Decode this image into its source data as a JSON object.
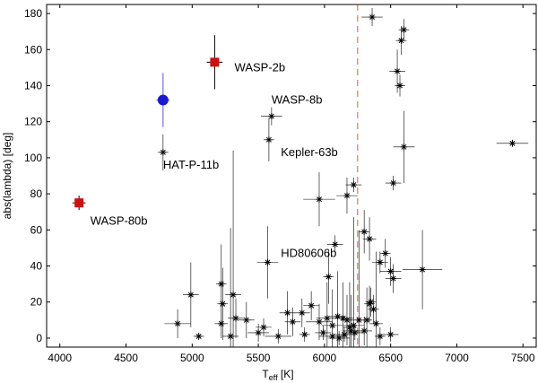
{
  "chart_data": {
    "type": "scatter",
    "title": "",
    "xlabel": "T",
    "xlabel_sub": "eff",
    "xlabel_unit": " [K]",
    "ylabel": "abs(lambda) [deg]",
    "xlim": [
      3900,
      7600
    ],
    "ylim": [
      -5,
      185
    ],
    "xticks": [
      4000,
      4500,
      5000,
      5500,
      6000,
      6500,
      7000,
      7500
    ],
    "yticks": [
      0,
      20,
      40,
      60,
      80,
      100,
      120,
      140,
      160,
      180
    ],
    "grid": false,
    "threshold": {
      "x": 6250,
      "color": "#e8806a",
      "style": "dashed"
    },
    "colors": {
      "star": "#000000",
      "errorbar": "#000000",
      "square": "#cc1111",
      "circle": "#1a1acc",
      "circle_err": "#5555dd"
    },
    "highlighted": [
      {
        "name": "WASP-2b",
        "marker": "square",
        "x": 5170,
        "y": 153,
        "xerr": 60,
        "yerr": 15
      },
      {
        "name": "WASP-80b",
        "marker": "square",
        "x": 4145,
        "y": 75,
        "xerr": 50,
        "yerr": 4
      },
      {
        "name": "HAT-P-11b",
        "marker": "circle",
        "x": 4780,
        "y": 132,
        "xerr": 50,
        "yerr": 15
      }
    ],
    "annotations": [
      {
        "text": "WASP-2b",
        "x": 5320,
        "y": 148
      },
      {
        "text": "WASP-8b",
        "x": 5600,
        "y": 130
      },
      {
        "text": "HAT-P-11b",
        "x": 4780,
        "y": 94
      },
      {
        "text": "Kepler-63b",
        "x": 5670,
        "y": 101
      },
      {
        "text": "WASP-80b",
        "x": 4230,
        "y": 63
      },
      {
        "text": "HD80606b",
        "x": 5670,
        "y": 45
      }
    ],
    "points": [
      [
        6360,
        178,
        80,
        5
      ],
      [
        6600,
        171,
        40,
        6
      ],
      [
        6580,
        165,
        40,
        8
      ],
      [
        6550,
        148,
        60,
        12
      ],
      [
        6570,
        140,
        40,
        6
      ],
      [
        5600,
        123,
        80,
        5
      ],
      [
        5580,
        110,
        40,
        12
      ],
      [
        4780,
        103,
        40,
        10
      ],
      [
        6600,
        106,
        80,
        20
      ],
      [
        7420,
        108,
        120,
        2
      ],
      [
        6220,
        85,
        60,
        4
      ],
      [
        6170,
        79,
        80,
        10
      ],
      [
        5960,
        77,
        120,
        15
      ],
      [
        6520,
        86,
        60,
        4
      ],
      [
        6460,
        47,
        40,
        8
      ],
      [
        6300,
        59,
        40,
        12
      ],
      [
        6340,
        55,
        50,
        12
      ],
      [
        6420,
        42,
        60,
        6
      ],
      [
        6500,
        37,
        80,
        8
      ],
      [
        6520,
        33,
        60,
        8
      ],
      [
        6740,
        38,
        150,
        22
      ],
      [
        6080,
        52,
        60,
        5
      ],
      [
        6030,
        34,
        40,
        15
      ],
      [
        5570,
        42,
        80,
        20
      ],
      [
        4990,
        24,
        60,
        18
      ],
      [
        4890,
        8,
        100,
        8
      ],
      [
        5220,
        30,
        40,
        22
      ],
      [
        5230,
        19,
        40,
        20
      ],
      [
        5220,
        8,
        50,
        8
      ],
      [
        5310,
        24,
        60,
        80
      ],
      [
        5330,
        11,
        60,
        11
      ],
      [
        5410,
        10,
        60,
        10
      ],
      [
        5290,
        1,
        60,
        60
      ],
      [
        5050,
        1,
        40,
        2
      ],
      [
        5720,
        14,
        60,
        12
      ],
      [
        5760,
        9,
        60,
        8
      ],
      [
        5830,
        14,
        60,
        8
      ],
      [
        5900,
        18,
        60,
        8
      ],
      [
        5960,
        9,
        100,
        10
      ],
      [
        6020,
        11,
        80,
        20
      ],
      [
        6060,
        7,
        80,
        20
      ],
      [
        6100,
        12,
        60,
        25
      ],
      [
        6140,
        11,
        80,
        20
      ],
      [
        6170,
        10,
        50,
        14
      ],
      [
        6190,
        6,
        50,
        25
      ],
      [
        6200,
        4,
        60,
        20
      ],
      [
        6220,
        7,
        80,
        60
      ],
      [
        6260,
        10,
        80,
        50
      ],
      [
        6300,
        4,
        60,
        8
      ],
      [
        6320,
        10,
        40,
        18
      ],
      [
        6350,
        20,
        40,
        8
      ],
      [
        6370,
        16,
        40,
        8
      ],
      [
        6390,
        8,
        50,
        40
      ],
      [
        6420,
        1,
        40,
        5
      ],
      [
        6500,
        2,
        60,
        4
      ],
      [
        6110,
        0,
        80,
        4
      ],
      [
        5990,
        3,
        60,
        4
      ],
      [
        5850,
        2,
        40,
        4
      ],
      [
        5500,
        3,
        80,
        5
      ],
      [
        5650,
        1,
        100,
        4
      ],
      [
        5540,
        6,
        60,
        5
      ],
      [
        6060,
        1,
        100,
        6
      ],
      [
        6150,
        2,
        80,
        4
      ],
      [
        6230,
        3,
        60,
        4
      ],
      [
        6340,
        19,
        40,
        10
      ]
    ]
  }
}
